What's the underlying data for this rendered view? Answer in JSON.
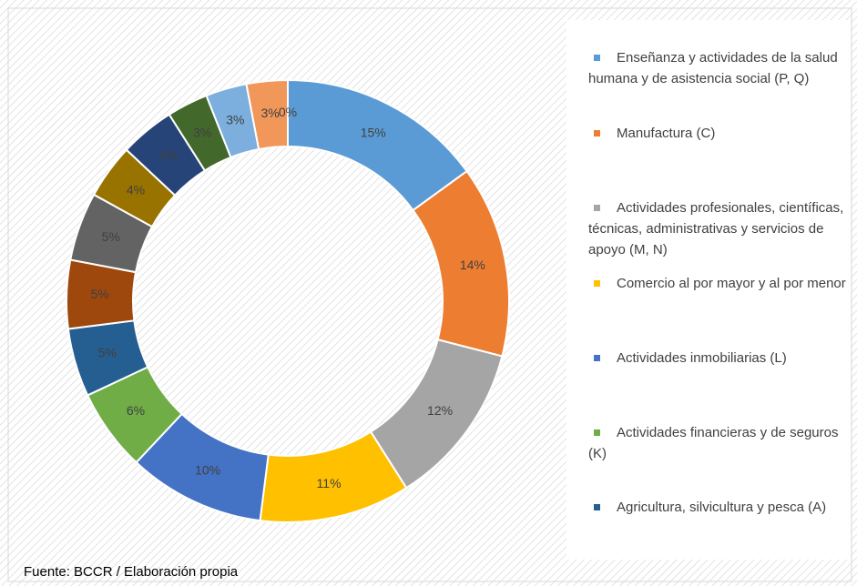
{
  "chart_data": {
    "type": "donut",
    "categories": [
      "Enseñanza y actividades de la salud humana y de asistencia social (P, Q)",
      "Manufactura (C)",
      "Actividades profesionales, científicas, técnicas, administrativas y servicios de apoyo (M, N)",
      "Comercio al por mayor y al por menor",
      "Actividades inmobiliarias (L)",
      "Actividades financieras y de seguros (K)",
      "Agricultura, silvicultura y pesca (A)",
      null,
      null,
      null,
      null,
      null,
      null,
      null,
      null
    ],
    "values": [
      15,
      14,
      12,
      11,
      10,
      6,
      5,
      5,
      5,
      4,
      4,
      3,
      3,
      3,
      0
    ],
    "value_labels": [
      "15%",
      "14%",
      "12%",
      "11%",
      "10%",
      "6%",
      "5%",
      "5%",
      "5%",
      "4%",
      "4%",
      "3%",
      "3%",
      "3%",
      "0%"
    ],
    "colors": [
      "#5b9bd5",
      "#ed7d31",
      "#a5a5a5",
      "#ffc000",
      "#4472c4",
      "#70ad47",
      "#255e91",
      "#9e480e",
      "#636363",
      "#997300",
      "#264478",
      "#43682b",
      "#7cafdd",
      "#f1975a",
      "#b7b7b7"
    ],
    "source": "Fuente: BCCR / Elaboración propia"
  }
}
